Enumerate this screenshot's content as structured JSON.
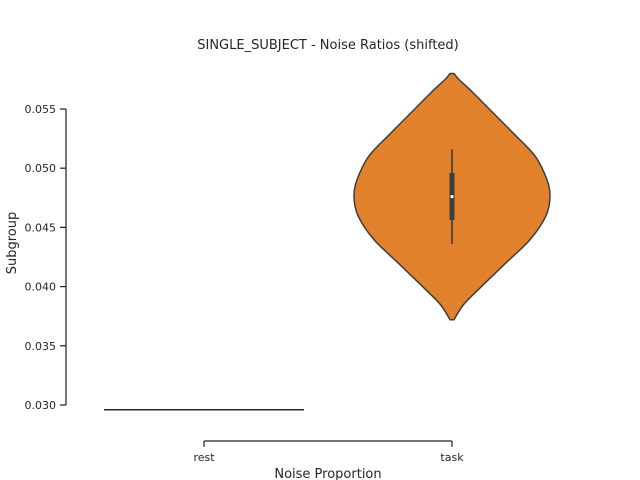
{
  "chart_data": {
    "type": "violin",
    "title": "SINGLE_SUBJECT - Noise Ratios (shifted)",
    "xlabel": "Noise Proportion",
    "ylabel": "Subgroup",
    "categories": [
      "rest",
      "task"
    ],
    "ylim": [
      0.03,
      0.055
    ],
    "yticks": [
      "0.030",
      "0.035",
      "0.040",
      "0.045",
      "0.050",
      "0.055"
    ],
    "grid": false,
    "series": [
      {
        "category": "rest",
        "value": 0.0296,
        "color": "#262626"
      },
      {
        "category": "task",
        "min": 0.0372,
        "max": 0.058,
        "median": 0.0476,
        "q1": 0.0456,
        "q3": 0.0496,
        "whisker_low": 0.0436,
        "whisker_high": 0.0516,
        "color": "#e1812c",
        "edge_color": "#3d3d3d",
        "density": [
          [
            0.0372,
            0.02
          ],
          [
            0.0385,
            0.12
          ],
          [
            0.04,
            0.3
          ],
          [
            0.042,
            0.55
          ],
          [
            0.044,
            0.8
          ],
          [
            0.046,
            0.96
          ],
          [
            0.0476,
            1.0
          ],
          [
            0.049,
            0.97
          ],
          [
            0.051,
            0.85
          ],
          [
            0.053,
            0.62
          ],
          [
            0.055,
            0.38
          ],
          [
            0.0565,
            0.2
          ],
          [
            0.0575,
            0.07
          ],
          [
            0.058,
            0.02
          ]
        ]
      }
    ]
  }
}
